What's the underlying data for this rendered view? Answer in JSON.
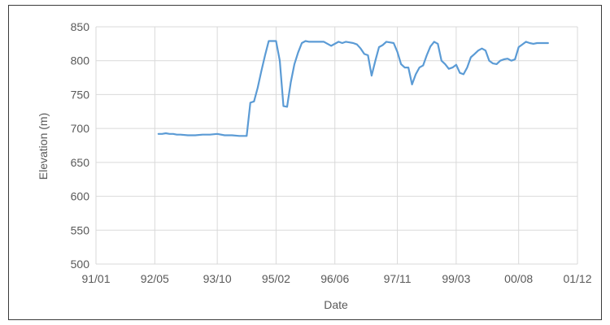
{
  "chart_data": {
    "type": "line",
    "title": "",
    "xlabel": "Date",
    "ylabel": "Elevation (m)",
    "x_tick_labels": [
      "91/01",
      "92/05",
      "93/10",
      "95/02",
      "96/06",
      "97/11",
      "99/03",
      "00/08",
      "01/12"
    ],
    "x_ticks": [
      "1991-01",
      "1992-05",
      "1993-10",
      "1995-02",
      "1996-06",
      "1997-11",
      "1999-03",
      "2000-08",
      "2001-12"
    ],
    "xlim": [
      "1991-01",
      "2001-12"
    ],
    "y_ticks": [
      500,
      550,
      600,
      650,
      700,
      750,
      800,
      850
    ],
    "ylim": [
      500,
      850
    ],
    "grid": true,
    "legend": "none",
    "line_color": "#5b9bd5",
    "series": [
      {
        "x": [
          "1992-06",
          "1992-07",
          "1992-08",
          "1992-09",
          "1992-10",
          "1992-11",
          "1992-12",
          "1993-02",
          "1993-04",
          "1993-06",
          "1993-08",
          "1993-10",
          "1993-12",
          "1994-02",
          "1994-04",
          "1994-06",
          "1994-07",
          "1994-08",
          "1994-09",
          "1994-10",
          "1994-11",
          "1994-12",
          "1995-01",
          "1995-02",
          "1995-03",
          "1995-04",
          "1995-05",
          "1995-06",
          "1995-07",
          "1995-08",
          "1995-09",
          "1995-10",
          "1995-11",
          "1995-12",
          "1996-01",
          "1996-03",
          "1996-05",
          "1996-07",
          "1996-08",
          "1996-09",
          "1996-10",
          "1996-11",
          "1996-12",
          "1997-01",
          "1997-02",
          "1997-03",
          "1997-04",
          "1997-05",
          "1997-06",
          "1997-07",
          "1997-08",
          "1997-09",
          "1997-10",
          "1997-11",
          "1997-12",
          "1998-01",
          "1998-02",
          "1998-03",
          "1998-04",
          "1998-05",
          "1998-06",
          "1998-07",
          "1998-08",
          "1998-09",
          "1998-10",
          "1998-11",
          "1998-12",
          "1999-01",
          "1999-02",
          "1999-03",
          "1999-04",
          "1999-05",
          "1999-06",
          "1999-07",
          "1999-08",
          "1999-09",
          "1999-10",
          "1999-11",
          "1999-12",
          "2000-01",
          "2000-02",
          "2000-03",
          "2000-04",
          "2000-05",
          "2000-06",
          "2000-07",
          "2000-08",
          "2000-09",
          "2000-10",
          "2000-11",
          "2000-12",
          "2001-01",
          "2001-02",
          "2001-03",
          "2001-04"
        ],
        "y": [
          692,
          692,
          693,
          692,
          692,
          691,
          691,
          690,
          690,
          691,
          691,
          692,
          690,
          690,
          689,
          689,
          738,
          740,
          760,
          785,
          808,
          829,
          829,
          829,
          800,
          733,
          732,
          768,
          795,
          812,
          826,
          829,
          828,
          828,
          828,
          828,
          822,
          828,
          826,
          828,
          827,
          826,
          824,
          818,
          810,
          808,
          778,
          800,
          820,
          823,
          828,
          827,
          826,
          813,
          795,
          790,
          790,
          765,
          780,
          790,
          793,
          808,
          821,
          828,
          825,
          800,
          795,
          788,
          790,
          794,
          782,
          780,
          790,
          805,
          810,
          815,
          818,
          815,
          800,
          796,
          795,
          800,
          802,
          803,
          800,
          802,
          820,
          824,
          828,
          826,
          825,
          826,
          826,
          826,
          826
        ]
      }
    ]
  }
}
